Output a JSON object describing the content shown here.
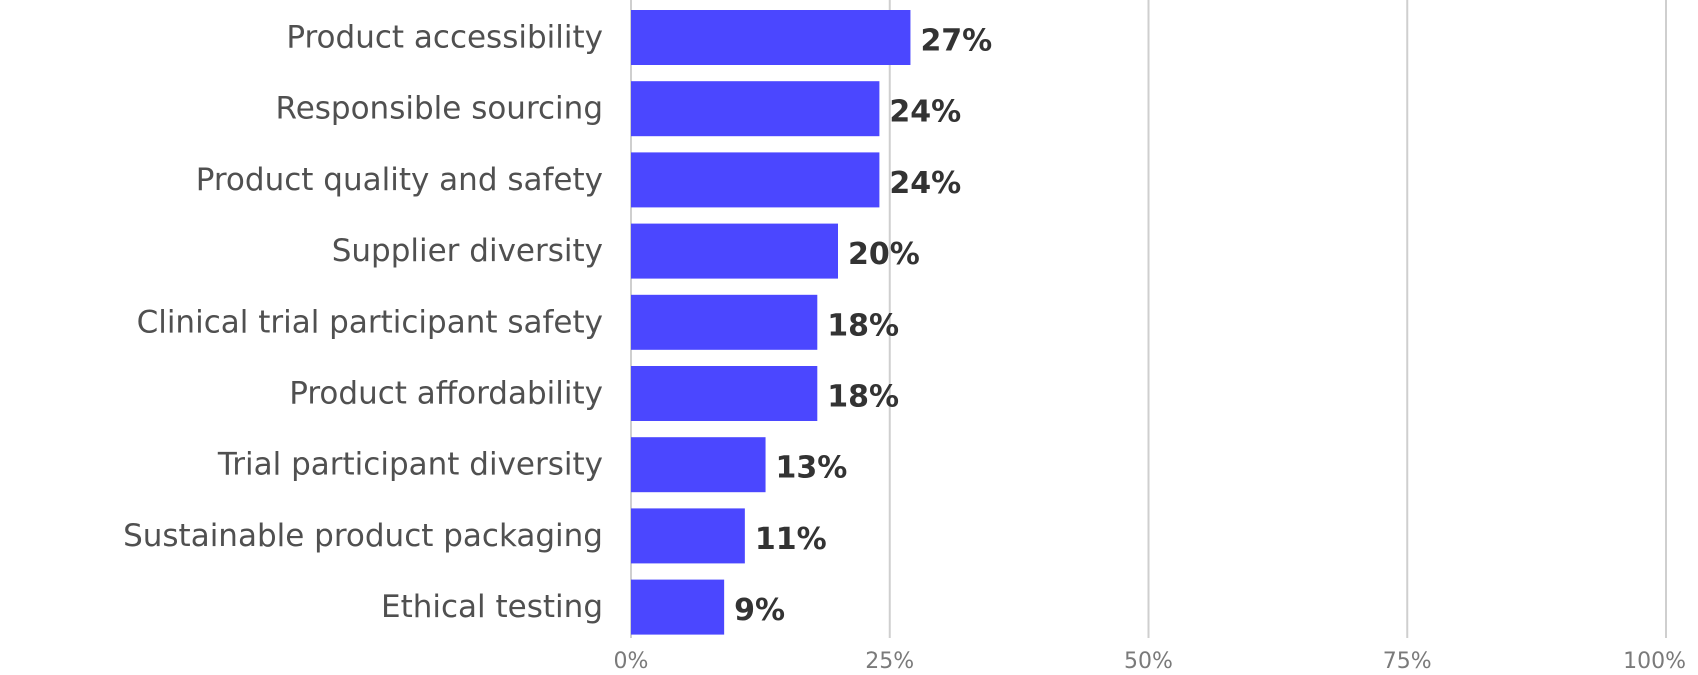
{
  "chart_data": {
    "type": "bar",
    "orientation": "horizontal",
    "categories": [
      "Product accessibility",
      "Responsible sourcing",
      "Product quality and safety",
      "Supplier diversity",
      "Clinical trial participant safety",
      "Product affordability",
      "Trial participant diversity",
      "Sustainable product packaging",
      "Ethical testing"
    ],
    "values": [
      27,
      24,
      24,
      20,
      18,
      18,
      13,
      11,
      9
    ],
    "data_labels": [
      "27%",
      "24%",
      "24%",
      "20%",
      "18%",
      "18%",
      "13%",
      "11%",
      "9%"
    ],
    "x_ticks": [
      0,
      25,
      50,
      75,
      100
    ],
    "x_tick_labels": [
      "0%",
      "25%",
      "50%",
      "75%",
      "100%"
    ],
    "xlim": [
      0,
      100
    ],
    "title": "",
    "xlabel": "",
    "ylabel": "",
    "grid": "vertical",
    "legend": "none",
    "bar_color": "#4b47ff"
  }
}
